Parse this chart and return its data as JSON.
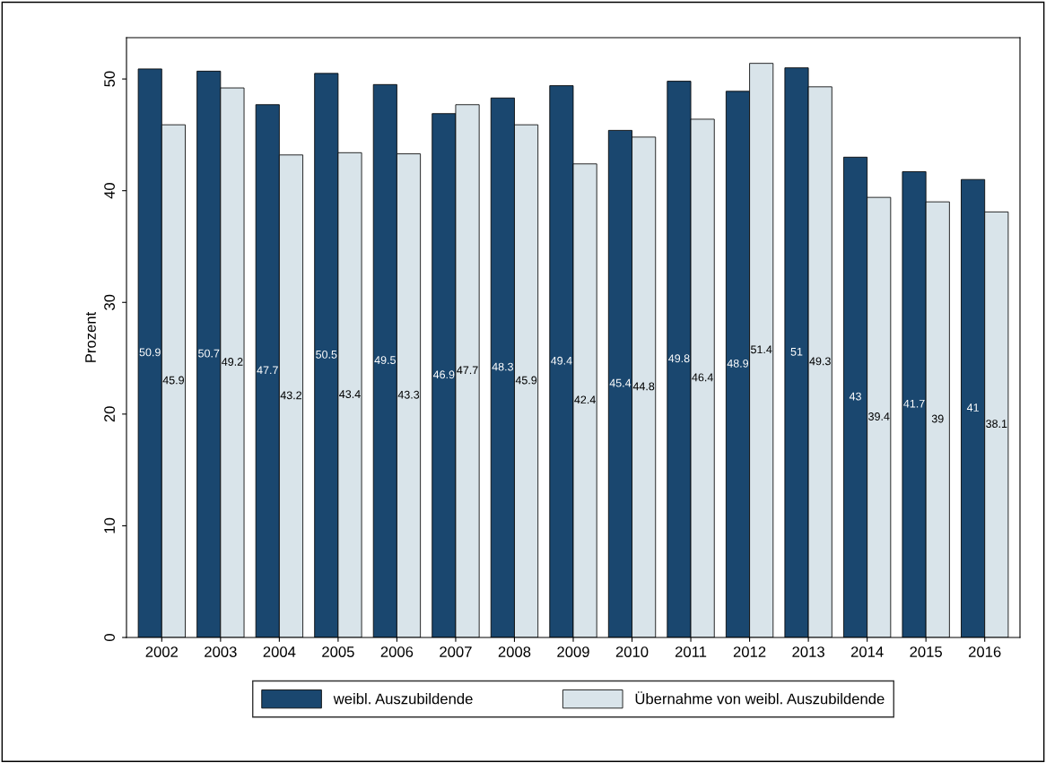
{
  "chart_data": {
    "type": "bar",
    "ylabel": "Prozent",
    "categories": [
      "2002",
      "2003",
      "2004",
      "2005",
      "2006",
      "2007",
      "2008",
      "2009",
      "2010",
      "2011",
      "2012",
      "2013",
      "2014",
      "2015",
      "2016"
    ],
    "series": [
      {
        "name": "weibl. Auszubildende",
        "color": "#1a476f",
        "values": [
          50.9,
          50.7,
          47.7,
          50.5,
          49.5,
          46.9,
          48.3,
          49.4,
          45.4,
          49.8,
          48.9,
          51,
          43,
          41.7,
          41
        ]
      },
      {
        "name": "Übernahme von weibl. Auszubildende",
        "color": "#d9e4ea",
        "values": [
          45.9,
          49.2,
          43.2,
          43.4,
          43.3,
          47.7,
          45.9,
          42.4,
          44.8,
          46.4,
          51.4,
          49.3,
          39.4,
          39,
          38.1
        ]
      }
    ],
    "ylim": [
      0,
      53.7
    ],
    "yticks": [
      0,
      10,
      20,
      30,
      40,
      50
    ],
    "grid": false,
    "legend": "bottom",
    "data_labels": true
  }
}
